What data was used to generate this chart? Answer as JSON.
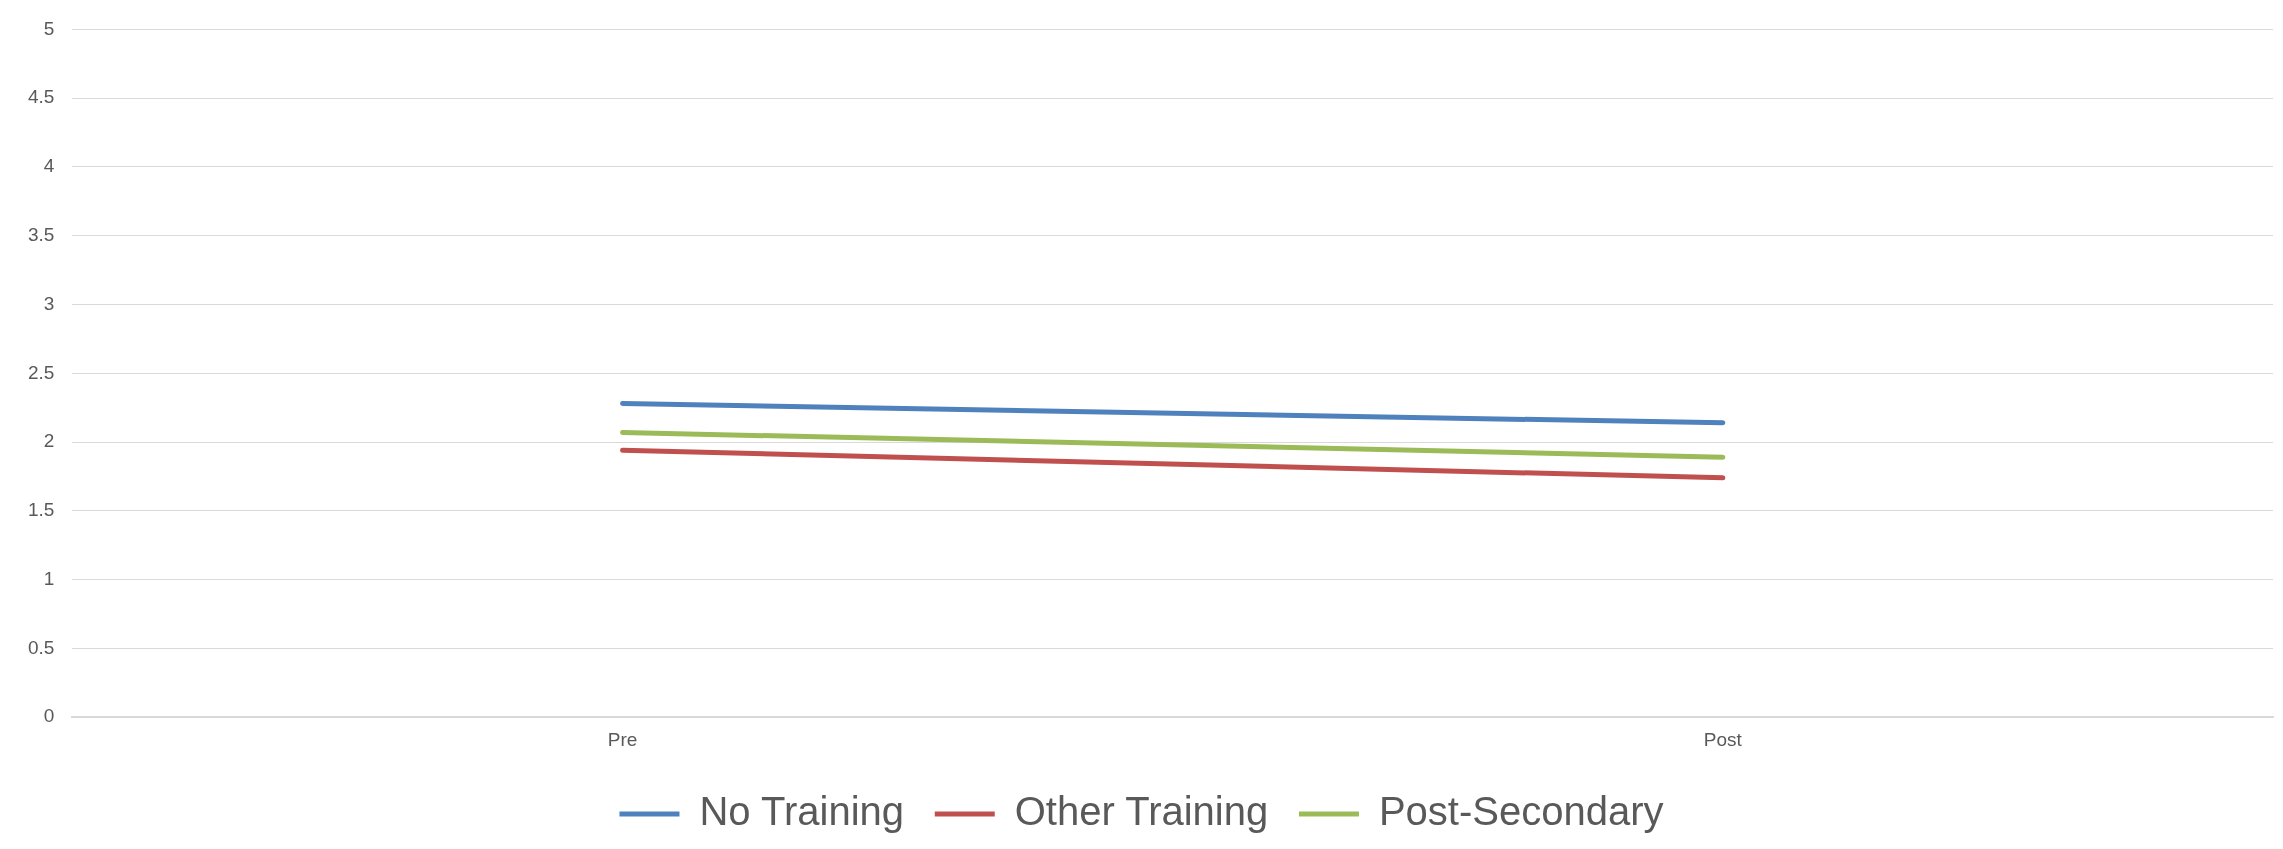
{
  "chart_data": {
    "type": "line",
    "categories": [
      "Pre",
      "Post"
    ],
    "series": [
      {
        "name": "No Training",
        "color": "#4f81bd",
        "values": [
          2.28,
          2.14
        ]
      },
      {
        "name": "Other Training",
        "color": "#c0504d",
        "values": [
          1.94,
          1.74
        ]
      },
      {
        "name": "Post-Secondary",
        "color": "#9bbb59",
        "values": [
          2.07,
          1.89
        ]
      }
    ],
    "ylim": [
      0,
      5
    ],
    "yticks": [
      0,
      0.5,
      1,
      1.5,
      2,
      2.5,
      3,
      3.5,
      4,
      4.5,
      5
    ],
    "grid": "y",
    "legend": "bottom",
    "marker": "none",
    "line_style": "solid"
  }
}
